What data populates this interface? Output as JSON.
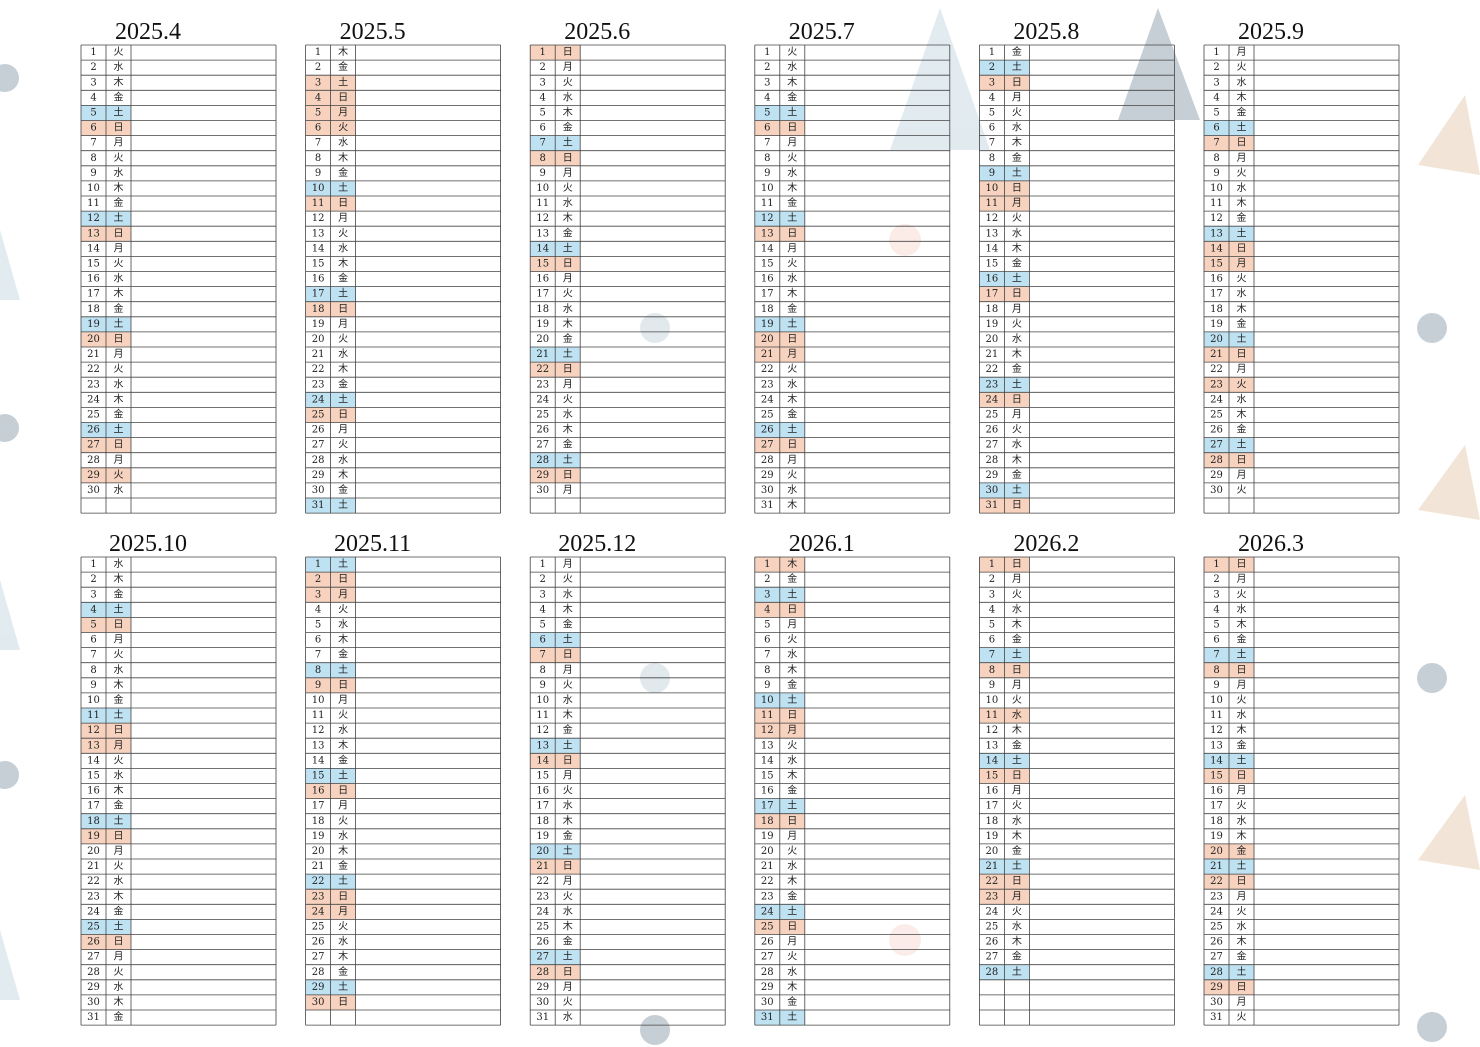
{
  "colors": {
    "saturday": "#bfe2f2",
    "holiday": "#f7d3bf"
  },
  "months": [
    {
      "title": "2025.4",
      "days": [
        1,
        2,
        3,
        4,
        5,
        6,
        7,
        8,
        9,
        10,
        11,
        12,
        13,
        14,
        15,
        16,
        17,
        18,
        19,
        20,
        21,
        22,
        23,
        24,
        25,
        26,
        27,
        28,
        29,
        30
      ],
      "weekdays": [
        "火",
        "水",
        "木",
        "金",
        "土",
        "日",
        "月",
        "火",
        "水",
        "木",
        "金",
        "土",
        "日",
        "月",
        "火",
        "水",
        "木",
        "金",
        "土",
        "日",
        "月",
        "火",
        "水",
        "木",
        "金",
        "土",
        "日",
        "月",
        "火",
        "水"
      ],
      "saturdays": [
        5,
        12,
        19,
        26
      ],
      "holidays": [
        6,
        13,
        20,
        27,
        29
      ]
    },
    {
      "title": "2025.5",
      "days": [
        1,
        2,
        3,
        4,
        5,
        6,
        7,
        8,
        9,
        10,
        11,
        12,
        13,
        14,
        15,
        16,
        17,
        18,
        19,
        20,
        21,
        22,
        23,
        24,
        25,
        26,
        27,
        28,
        29,
        30,
        31
      ],
      "weekdays": [
        "木",
        "金",
        "土",
        "日",
        "月",
        "火",
        "水",
        "木",
        "金",
        "土",
        "日",
        "月",
        "火",
        "水",
        "木",
        "金",
        "土",
        "日",
        "月",
        "火",
        "水",
        "木",
        "金",
        "土",
        "日",
        "月",
        "火",
        "水",
        "木",
        "金",
        "土"
      ],
      "saturdays": [
        10,
        17,
        24,
        31
      ],
      "holidays": [
        3,
        4,
        5,
        6,
        11,
        18,
        25
      ]
    },
    {
      "title": "2025.6",
      "days": [
        1,
        2,
        3,
        4,
        5,
        6,
        7,
        8,
        9,
        10,
        11,
        12,
        13,
        14,
        15,
        16,
        17,
        18,
        19,
        20,
        21,
        22,
        23,
        24,
        25,
        26,
        27,
        28,
        29,
        30
      ],
      "weekdays": [
        "日",
        "月",
        "火",
        "水",
        "木",
        "金",
        "土",
        "日",
        "月",
        "火",
        "水",
        "木",
        "金",
        "土",
        "日",
        "月",
        "火",
        "水",
        "木",
        "金",
        "土",
        "日",
        "月",
        "火",
        "水",
        "木",
        "金",
        "土",
        "日",
        "月"
      ],
      "saturdays": [
        7,
        14,
        21,
        28
      ],
      "holidays": [
        1,
        8,
        15,
        22,
        29
      ]
    },
    {
      "title": "2025.7",
      "days": [
        1,
        2,
        3,
        4,
        5,
        6,
        7,
        8,
        9,
        10,
        11,
        12,
        13,
        14,
        15,
        16,
        17,
        18,
        19,
        20,
        21,
        22,
        23,
        24,
        25,
        26,
        27,
        28,
        29,
        30,
        31
      ],
      "weekdays": [
        "火",
        "水",
        "木",
        "金",
        "土",
        "日",
        "月",
        "火",
        "水",
        "木",
        "金",
        "土",
        "日",
        "月",
        "火",
        "水",
        "木",
        "金",
        "土",
        "日",
        "月",
        "火",
        "水",
        "木",
        "金",
        "土",
        "日",
        "月",
        "火",
        "水",
        "木"
      ],
      "saturdays": [
        5,
        12,
        19,
        26
      ],
      "holidays": [
        6,
        13,
        20,
        21,
        27
      ]
    },
    {
      "title": "2025.8",
      "days": [
        1,
        2,
        3,
        4,
        5,
        6,
        7,
        8,
        9,
        10,
        11,
        12,
        13,
        14,
        15,
        16,
        17,
        18,
        19,
        20,
        21,
        22,
        23,
        24,
        25,
        26,
        27,
        28,
        29,
        30,
        31
      ],
      "weekdays": [
        "金",
        "土",
        "日",
        "月",
        "火",
        "水",
        "木",
        "金",
        "土",
        "日",
        "月",
        "火",
        "水",
        "木",
        "金",
        "土",
        "日",
        "月",
        "火",
        "水",
        "木",
        "金",
        "土",
        "日",
        "月",
        "火",
        "水",
        "木",
        "金",
        "土",
        "日"
      ],
      "saturdays": [
        2,
        9,
        16,
        23,
        30
      ],
      "holidays": [
        3,
        10,
        11,
        17,
        24,
        31
      ]
    },
    {
      "title": "2025.9",
      "days": [
        1,
        2,
        3,
        4,
        5,
        6,
        7,
        8,
        9,
        10,
        11,
        12,
        13,
        14,
        15,
        16,
        17,
        18,
        19,
        20,
        21,
        22,
        23,
        24,
        25,
        26,
        27,
        28,
        29,
        30
      ],
      "weekdays": [
        "月",
        "火",
        "水",
        "木",
        "金",
        "土",
        "日",
        "月",
        "火",
        "水",
        "木",
        "金",
        "土",
        "日",
        "月",
        "火",
        "水",
        "木",
        "金",
        "土",
        "日",
        "月",
        "火",
        "水",
        "木",
        "金",
        "土",
        "日",
        "月",
        "火"
      ],
      "saturdays": [
        6,
        13,
        20,
        27
      ],
      "holidays": [
        7,
        14,
        15,
        21,
        23,
        28
      ]
    },
    {
      "title": "2025.10",
      "days": [
        1,
        2,
        3,
        4,
        5,
        6,
        7,
        8,
        9,
        10,
        11,
        12,
        13,
        14,
        15,
        16,
        17,
        18,
        19,
        20,
        21,
        22,
        23,
        24,
        25,
        26,
        27,
        28,
        29,
        30,
        31
      ],
      "weekdays": [
        "水",
        "木",
        "金",
        "土",
        "日",
        "月",
        "火",
        "水",
        "木",
        "金",
        "土",
        "日",
        "月",
        "火",
        "水",
        "木",
        "金",
        "土",
        "日",
        "月",
        "火",
        "水",
        "木",
        "金",
        "土",
        "日",
        "月",
        "火",
        "水",
        "木",
        "金"
      ],
      "saturdays": [
        4,
        11,
        18,
        25
      ],
      "holidays": [
        5,
        12,
        13,
        19,
        26
      ]
    },
    {
      "title": "2025.11",
      "days": [
        1,
        2,
        3,
        4,
        5,
        6,
        7,
        8,
        9,
        10,
        11,
        12,
        13,
        14,
        15,
        16,
        17,
        18,
        19,
        20,
        21,
        22,
        23,
        24,
        25,
        26,
        27,
        28,
        29,
        30
      ],
      "weekdays": [
        "土",
        "日",
        "月",
        "火",
        "水",
        "木",
        "金",
        "土",
        "日",
        "月",
        "火",
        "水",
        "木",
        "金",
        "土",
        "日",
        "月",
        "火",
        "水",
        "木",
        "金",
        "土",
        "日",
        "月",
        "火",
        "水",
        "木",
        "金",
        "土",
        "日"
      ],
      "saturdays": [
        1,
        8,
        15,
        22,
        29
      ],
      "holidays": [
        2,
        3,
        9,
        16,
        23,
        24,
        30
      ]
    },
    {
      "title": "2025.12",
      "days": [
        1,
        2,
        3,
        4,
        5,
        6,
        7,
        8,
        9,
        10,
        11,
        12,
        13,
        14,
        15,
        16,
        17,
        18,
        19,
        20,
        21,
        22,
        23,
        24,
        25,
        26,
        27,
        28,
        29,
        30,
        31
      ],
      "weekdays": [
        "月",
        "火",
        "水",
        "木",
        "金",
        "土",
        "日",
        "月",
        "火",
        "水",
        "木",
        "金",
        "土",
        "日",
        "月",
        "火",
        "水",
        "木",
        "金",
        "土",
        "日",
        "月",
        "火",
        "水",
        "木",
        "金",
        "土",
        "日",
        "月",
        "火",
        "水"
      ],
      "saturdays": [
        6,
        13,
        20,
        27
      ],
      "holidays": [
        7,
        14,
        21,
        28
      ]
    },
    {
      "title": "2026.1",
      "days": [
        1,
        2,
        3,
        4,
        5,
        6,
        7,
        8,
        9,
        10,
        11,
        12,
        13,
        14,
        15,
        16,
        17,
        18,
        19,
        20,
        21,
        22,
        23,
        24,
        25,
        26,
        27,
        28,
        29,
        30,
        31
      ],
      "weekdays": [
        "木",
        "金",
        "土",
        "日",
        "月",
        "火",
        "水",
        "木",
        "金",
        "土",
        "日",
        "月",
        "火",
        "水",
        "木",
        "金",
        "土",
        "日",
        "月",
        "火",
        "水",
        "木",
        "金",
        "土",
        "日",
        "月",
        "火",
        "水",
        "木",
        "金",
        "土"
      ],
      "saturdays": [
        3,
        10,
        17,
        24,
        31
      ],
      "holidays": [
        1,
        4,
        11,
        12,
        18,
        25
      ]
    },
    {
      "title": "2026.2",
      "days": [
        1,
        2,
        3,
        4,
        5,
        6,
        7,
        8,
        9,
        10,
        11,
        12,
        13,
        14,
        15,
        16,
        17,
        18,
        19,
        20,
        21,
        22,
        23,
        24,
        25,
        26,
        27,
        28
      ],
      "weekdays": [
        "日",
        "月",
        "火",
        "水",
        "木",
        "金",
        "土",
        "日",
        "月",
        "火",
        "水",
        "木",
        "金",
        "土",
        "日",
        "月",
        "火",
        "水",
        "木",
        "金",
        "土",
        "日",
        "月",
        "火",
        "水",
        "木",
        "金",
        "土"
      ],
      "saturdays": [
        7,
        14,
        21,
        28
      ],
      "holidays": [
        1,
        8,
        11,
        15,
        22,
        23
      ]
    },
    {
      "title": "2026.3",
      "days": [
        1,
        2,
        3,
        4,
        5,
        6,
        7,
        8,
        9,
        10,
        11,
        12,
        13,
        14,
        15,
        16,
        17,
        18,
        19,
        20,
        21,
        22,
        23,
        24,
        25,
        26,
        27,
        28,
        29,
        30,
        31
      ],
      "weekdays": [
        "日",
        "月",
        "火",
        "水",
        "木",
        "金",
        "土",
        "日",
        "月",
        "火",
        "水",
        "木",
        "金",
        "土",
        "日",
        "月",
        "火",
        "水",
        "木",
        "金",
        "土",
        "日",
        "月",
        "火",
        "水",
        "木",
        "金",
        "土",
        "日",
        "月",
        "火"
      ],
      "saturdays": [
        7,
        14,
        21,
        28
      ],
      "holidays": [
        1,
        8,
        15,
        20,
        22,
        29
      ]
    }
  ]
}
